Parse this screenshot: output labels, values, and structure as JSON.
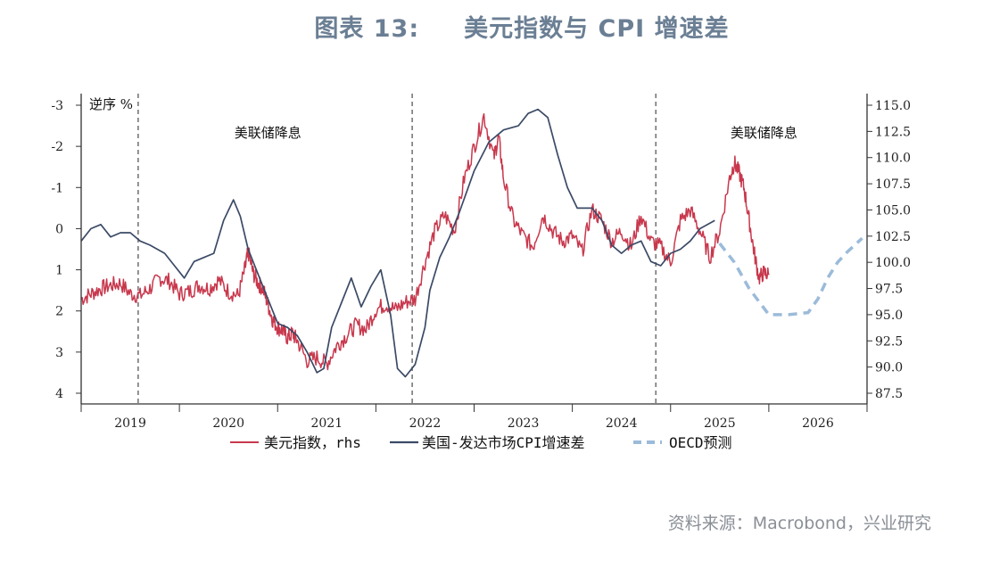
{
  "header": {
    "figure_no": "图表 13:",
    "title": "美元指数与 CPI 增速差"
  },
  "source": "资料来源：Macrobond，兴业研究",
  "colors": {
    "dxy": "#c8384d",
    "cpi_diff": "#3b4a66",
    "forecast": "#9bbbd9",
    "axis": "#333333",
    "event_line": "#777777"
  },
  "chart_data": {
    "type": "line",
    "title": "美元指数与 CPI 增速差",
    "left_axis": {
      "label": "逆序 %",
      "inverted": true,
      "range": [
        -3,
        4
      ],
      "ticks": [
        "-3",
        "-2",
        "-1",
        "0",
        "1",
        "2",
        "3",
        "4"
      ]
    },
    "right_axis": {
      "range": [
        87.5,
        115.0
      ],
      "ticks": [
        "115.0",
        "112.5",
        "110.0",
        "107.5",
        "105.0",
        "102.5",
        "100.0",
        "97.5",
        "95.0",
        "92.5",
        "90.0",
        "87.5"
      ]
    },
    "x_axis": {
      "range": [
        2018.5,
        2026.5
      ],
      "labels": [
        {
          "label": "2019",
          "x": 2019.0
        },
        {
          "label": "2020",
          "x": 2020.0
        },
        {
          "label": "2021",
          "x": 2021.0
        },
        {
          "label": "2022",
          "x": 2022.0
        },
        {
          "label": "2023",
          "x": 2023.0
        },
        {
          "label": "2024",
          "x": 2024.0
        },
        {
          "label": "2025",
          "x": 2025.0
        },
        {
          "label": "2026",
          "x": 2026.0
        }
      ]
    },
    "event_lines": [
      {
        "x": 2019.08,
        "label": ""
      },
      {
        "x": 2021.87,
        "label": ""
      },
      {
        "x": 2024.35,
        "label": ""
      }
    ],
    "annotations": [
      {
        "text": "美联储降息",
        "x": 2020.4,
        "y": -2.7
      },
      {
        "text": "美联储降息",
        "x": 2025.45,
        "y": -2.7
      }
    ],
    "series": [
      {
        "name": "美元指数，rhs",
        "axis": "right",
        "style": "solid",
        "x": [
          2018.5,
          2018.6,
          2018.7,
          2018.8,
          2018.9,
          2019.0,
          2019.1,
          2019.2,
          2019.3,
          2019.4,
          2019.5,
          2019.6,
          2019.7,
          2019.8,
          2019.9,
          2020.0,
          2020.1,
          2020.17,
          2020.2,
          2020.25,
          2020.3,
          2020.35,
          2020.4,
          2020.45,
          2020.5,
          2020.55,
          2020.6,
          2020.65,
          2020.7,
          2020.8,
          2020.9,
          2021.0,
          2021.1,
          2021.2,
          2021.3,
          2021.4,
          2021.5,
          2021.6,
          2021.7,
          2021.8,
          2021.9,
          2022.0,
          2022.1,
          2022.2,
          2022.3,
          2022.4,
          2022.5,
          2022.6,
          2022.7,
          2022.75,
          2022.8,
          2022.9,
          2023.0,
          2023.1,
          2023.2,
          2023.3,
          2023.4,
          2023.5,
          2023.6,
          2023.7,
          2023.8,
          2023.9,
          2024.0,
          2024.1,
          2024.2,
          2024.3,
          2024.4,
          2024.5,
          2024.6,
          2024.7,
          2024.8,
          2024.9,
          2025.0,
          2025.1,
          2025.15,
          2025.2,
          2025.25,
          2025.3,
          2025.35,
          2025.4,
          2025.45,
          2025.5
        ],
        "values": [
          96.5,
          97.0,
          97.5,
          97.8,
          98.0,
          97.0,
          96.8,
          97.5,
          98.5,
          98.2,
          97.0,
          97.2,
          97.8,
          97.5,
          98.3,
          97.2,
          96.8,
          99.5,
          101.0,
          99.0,
          98.0,
          97.5,
          96.0,
          94.5,
          93.8,
          93.5,
          92.8,
          93.2,
          92.5,
          90.6,
          90.9,
          90.3,
          92.0,
          93.0,
          94.0,
          93.6,
          95.5,
          96.0,
          95.5,
          96.2,
          96.5,
          100.0,
          103.0,
          104.5,
          103.0,
          108.0,
          111.0,
          114.0,
          110.0,
          112.0,
          108.0,
          104.0,
          102.5,
          101.5,
          104.5,
          103.0,
          102.0,
          102.5,
          101.0,
          105.0,
          104.0,
          102.0,
          103.0,
          101.5,
          104.5,
          102.0,
          101.5,
          100.0,
          104.0,
          105.0,
          103.0,
          100.5,
          103.0,
          108.0,
          109.5,
          108.5,
          107.0,
          104.0,
          101.0,
          98.5,
          99.0,
          98.8
        ]
      },
      {
        "name": "美国-发达市场CPI增速差",
        "axis": "left",
        "style": "solid",
        "x": [
          2018.5,
          2018.6,
          2018.7,
          2018.8,
          2018.9,
          2019.0,
          2019.1,
          2019.2,
          2019.35,
          2019.45,
          2019.55,
          2019.65,
          2019.75,
          2019.85,
          2019.95,
          2020.05,
          2020.12,
          2020.2,
          2020.3,
          2020.4,
          2020.5,
          2020.6,
          2020.7,
          2020.8,
          2020.9,
          2020.97,
          2021.05,
          2021.15,
          2021.25,
          2021.35,
          2021.45,
          2021.55,
          2021.65,
          2021.72,
          2021.8,
          2021.9,
          2022.0,
          2022.05,
          2022.15,
          2022.25,
          2022.35,
          2022.5,
          2022.65,
          2022.8,
          2022.95,
          2023.05,
          2023.15,
          2023.25,
          2023.35,
          2023.45,
          2023.55,
          2023.7,
          2023.8,
          2023.9,
          2024.0,
          2024.1,
          2024.2,
          2024.3,
          2024.4,
          2024.5,
          2024.6,
          2024.7,
          2024.8,
          2024.95
        ],
        "values": [
          0.3,
          0.0,
          -0.1,
          0.2,
          0.1,
          0.1,
          0.3,
          0.4,
          0.6,
          0.9,
          1.2,
          0.8,
          0.7,
          0.6,
          -0.2,
          -0.7,
          -0.3,
          0.5,
          1.1,
          1.7,
          2.3,
          2.4,
          2.6,
          3.0,
          3.5,
          3.4,
          2.4,
          1.8,
          1.2,
          1.9,
          1.4,
          1.0,
          2.1,
          3.4,
          3.6,
          3.3,
          2.4,
          1.5,
          0.7,
          0.2,
          -0.4,
          -1.4,
          -2.1,
          -2.4,
          -2.5,
          -2.8,
          -2.9,
          -2.7,
          -1.8,
          -1.0,
          -0.5,
          -0.5,
          -0.2,
          0.4,
          0.6,
          0.4,
          0.3,
          0.8,
          0.9,
          0.6,
          0.5,
          0.3,
          0.0,
          -0.2
        ]
      },
      {
        "name": "OECD预测",
        "axis": "right",
        "style": "dashed",
        "x": [
          2025.0,
          2025.15,
          2025.3,
          2025.5,
          2025.7,
          2025.9,
          2026.0,
          2026.1,
          2026.2,
          2026.3,
          2026.45
        ],
        "values": [
          101.8,
          100.0,
          97.5,
          95.0,
          95.0,
          95.2,
          96.5,
          98.5,
          100.0,
          101.0,
          102.3
        ]
      }
    ],
    "legend": {
      "position": "bottom",
      "entries": [
        "美元指数，rhs",
        "美国-发达市场CPI增速差",
        "OECD预测"
      ]
    }
  }
}
